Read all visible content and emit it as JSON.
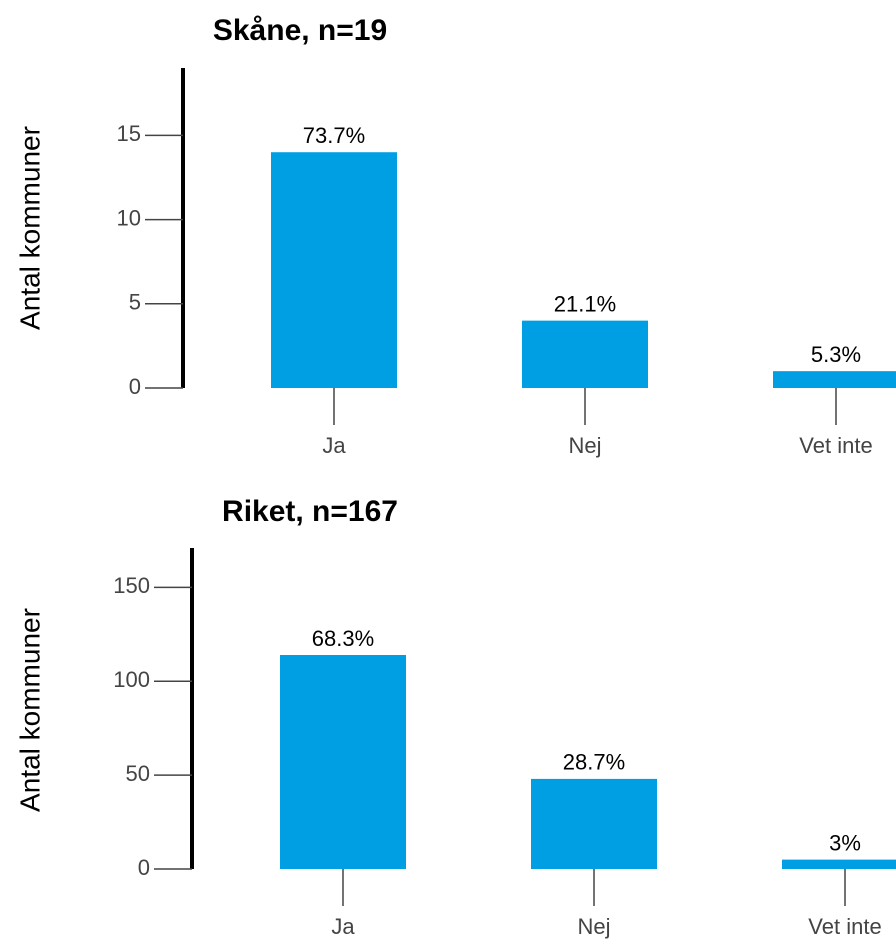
{
  "chart_data": [
    {
      "type": "bar",
      "title": "Skåne, n=19",
      "y_label": "Antal kommuner",
      "categories": [
        "Ja",
        "Nej",
        "Vet inte"
      ],
      "values": [
        14,
        4,
        1
      ],
      "annotations": [
        "73.7%",
        "21.1%",
        "5.3%"
      ],
      "color": "#009fe3",
      "ylim": [
        0,
        19
      ],
      "yticks": [
        0,
        5,
        10,
        15
      ]
    },
    {
      "type": "bar",
      "title": "Riket, n=167",
      "y_label": "Antal kommuner",
      "categories": [
        "Ja",
        "Nej",
        "Vet inte"
      ],
      "values": [
        114,
        48,
        5
      ],
      "annotations": [
        "68.3%",
        "28.7%",
        "3%"
      ],
      "color": "#009fe3",
      "ylim": [
        0,
        171
      ],
      "yticks": [
        0,
        50,
        100,
        150
      ]
    }
  ]
}
